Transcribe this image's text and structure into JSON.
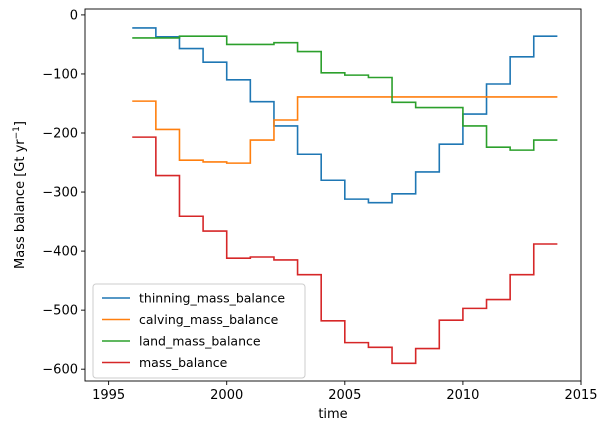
{
  "chart_data": {
    "type": "line",
    "step": "post",
    "title": "",
    "xlabel": "time",
    "ylabel": "Mass balance [Gt yr",
    "ylabel_sup": "−1",
    "ylabel_suffix": "]",
    "xlim": [
      1994.0,
      2015.0
    ],
    "ylim": [
      -620,
      10
    ],
    "xticks": [
      1995,
      2000,
      2005,
      2010,
      2015
    ],
    "xtick_labels": [
      "1995",
      "2000",
      "2005",
      "2010",
      "2015"
    ],
    "yticks": [
      -600,
      -500,
      -400,
      -300,
      -200,
      -100,
      0
    ],
    "ytick_labels": [
      "−600",
      "−500",
      "−400",
      "−300",
      "−200",
      "−100",
      "0"
    ],
    "grid": false,
    "legend_position": "lower-left",
    "x": [
      1996,
      1997,
      1998,
      1999,
      2000,
      2001,
      2002,
      2003,
      2004,
      2005,
      2006,
      2007,
      2008,
      2009,
      2010,
      2011,
      2012,
      2013,
      2014
    ],
    "series": [
      {
        "name": "thinning_mass_balance",
        "color": "#1f77b4",
        "values": [
          -22,
          -37,
          -57,
          -80,
          -110,
          -147,
          -188,
          -236,
          -280,
          -312,
          -318,
          -303,
          -266,
          -219,
          -168,
          -117,
          -71,
          -36,
          -36
        ]
      },
      {
        "name": "calving_mass_balance",
        "color": "#ff7f0e",
        "values": [
          -146,
          -194,
          -246,
          -249,
          -251,
          -212,
          -178,
          -139,
          -139,
          -139,
          -139,
          -139,
          -139,
          -139,
          -139,
          -139,
          -139,
          -139,
          -139
        ]
      },
      {
        "name": "land_mass_balance",
        "color": "#2ca02c",
        "values": [
          -39,
          -39,
          -36,
          -36,
          -50,
          -50,
          -47,
          -62,
          -98,
          -102,
          -106,
          -148,
          -157,
          -157,
          -188,
          -224,
          -229,
          -212,
          -212
        ]
      },
      {
        "name": "mass_balance",
        "color": "#d62728",
        "values": [
          -207,
          -272,
          -341,
          -366,
          -412,
          -410,
          -415,
          -440,
          -518,
          -555,
          -563,
          -590,
          -565,
          -517,
          -497,
          -482,
          -440,
          -388,
          -388
        ]
      }
    ]
  }
}
